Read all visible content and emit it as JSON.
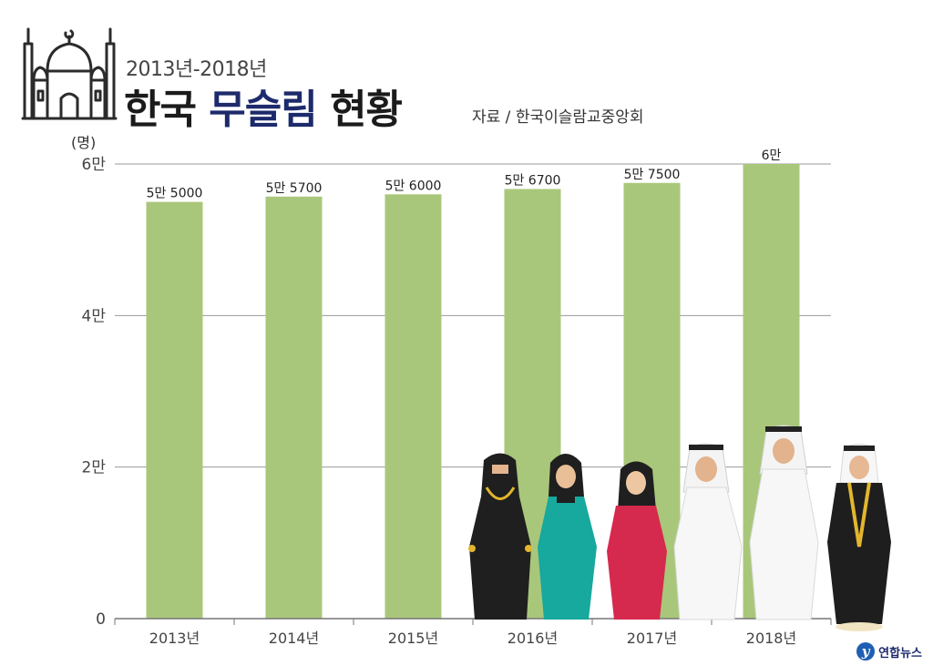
{
  "header": {
    "period": "2013년-2018년",
    "title_part1": "한국",
    "title_accent": "무슬림",
    "title_part2": "현황",
    "source": "자료 / 한국이슬람교중앙회"
  },
  "colors": {
    "bar": "#a9c77a",
    "grid": "#9a9a9a",
    "title_accent": "#1d2a6b"
  },
  "icons": [
    "mosque-icon",
    "muslim-people-illustration",
    "yonhap-logo-icon"
  ],
  "chart_data": {
    "type": "bar",
    "categories": [
      "2013년",
      "2014년",
      "2015년",
      "2016년",
      "2017년",
      "2018년"
    ],
    "values": [
      55000,
      55700,
      56000,
      56700,
      57500,
      60000
    ],
    "value_labels": [
      "5만 5000",
      "5만 5700",
      "5만 6000",
      "5만 6700",
      "5만 7500",
      "6만"
    ],
    "yticks": [
      0,
      20000,
      40000,
      60000
    ],
    "ytick_labels": [
      "0",
      "2만",
      "4만",
      "6만"
    ],
    "ylabel": "(명)",
    "ylim": [
      0,
      60000
    ],
    "grid": true
  },
  "logo": {
    "mark": "y",
    "text": "연합뉴스"
  }
}
